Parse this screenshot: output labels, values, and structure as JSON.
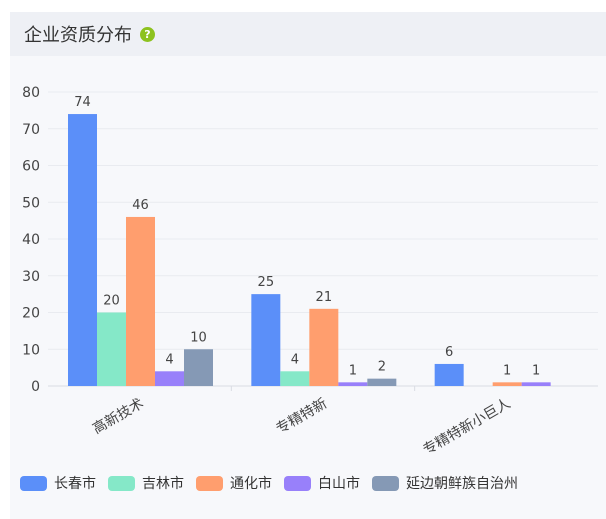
{
  "panel": {
    "title": "企业资质分布",
    "help_icon": "question-circle-icon"
  },
  "chart_data": {
    "type": "bar",
    "categories": [
      "高新技术",
      "专精特新",
      "专精特新小巨人"
    ],
    "series": [
      {
        "name": "长春市",
        "color": "#5b8ff9",
        "values": [
          74,
          25,
          6
        ]
      },
      {
        "name": "吉林市",
        "color": "#85e8c8",
        "values": [
          20,
          4,
          0
        ]
      },
      {
        "name": "通化市",
        "color": "#ff9e6e",
        "values": [
          46,
          21,
          1
        ]
      },
      {
        "name": "白山市",
        "color": "#9880fa",
        "values": [
          4,
          1,
          1
        ]
      },
      {
        "name": "延边朝鲜族自治州",
        "color": "#8599b5",
        "values": [
          10,
          2,
          0
        ]
      }
    ],
    "ylim": [
      0,
      80
    ],
    "yticks": [
      0,
      10,
      20,
      30,
      40,
      50,
      60,
      70,
      80
    ],
    "grid": true,
    "legend_position": "bottom"
  }
}
